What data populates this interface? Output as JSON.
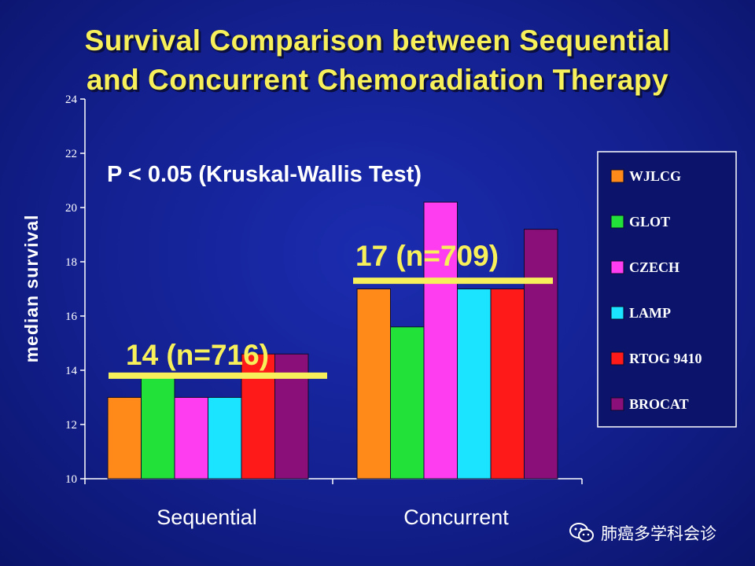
{
  "title_line1": "Survival Comparison between Sequential",
  "title_line2": "and Concurrent Chemoradiation Therapy",
  "annotation": "P < 0.05 (Kruskal-Wallis Test)",
  "watermark": "肺癌多学科会诊",
  "colors": {
    "background": "#13208f",
    "title": "#f7f05a",
    "mean_line": "#f7f05a"
  },
  "chart_data": {
    "type": "bar",
    "title": "Survival Comparison between Sequential and Concurrent Chemoradiation Therapy",
    "xlabel": "",
    "ylabel": "median survival",
    "ylim": [
      10,
      24
    ],
    "yticks": [
      10,
      12,
      14,
      16,
      18,
      20,
      22,
      24
    ],
    "categories": [
      "Sequential",
      "Concurrent"
    ],
    "legend_position": "right",
    "series": [
      {
        "name": "WJLCG",
        "color": "#ff8a1a",
        "values": [
          13.0,
          17.0
        ]
      },
      {
        "name": "GLOT",
        "color": "#22e23a",
        "values": [
          13.9,
          15.6
        ]
      },
      {
        "name": "CZECH",
        "color": "#ff3df0",
        "values": [
          13.0,
          20.2
        ]
      },
      {
        "name": "LAMP",
        "color": "#1ae4ff",
        "values": [
          13.0,
          17.0
        ]
      },
      {
        "name": "RTOG 9410",
        "color": "#ff1a1a",
        "values": [
          14.6,
          17.0
        ]
      },
      {
        "name": "BROCAT",
        "color": "#8a0f78",
        "values": [
          14.6,
          19.2
        ]
      }
    ],
    "group_means": [
      {
        "label": "14 (n=716)",
        "value": 13.8
      },
      {
        "label": "17 (n=709)",
        "value": 17.3
      }
    ]
  }
}
